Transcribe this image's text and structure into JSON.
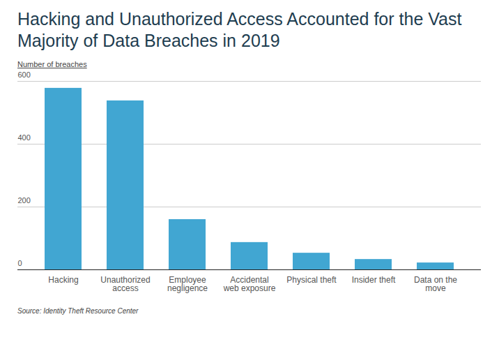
{
  "chart_data": {
    "type": "bar",
    "title": "Hacking and Unauthorized Access Accounted for the Vast Majority of Data Breaches in 2019",
    "y_label": "Number of breaches",
    "source": "Source: Identity Theft Resource Center",
    "categories": [
      "Hacking",
      "Unauthorized access",
      "Employee negligence",
      "Accidental web exposure",
      "Physical theft",
      "Insider theft",
      "Data on the move"
    ],
    "values": [
      578,
      538,
      160,
      87,
      53,
      33,
      22
    ],
    "color": "#41a6d2",
    "ylim": [
      0,
      600
    ],
    "yticks": [
      0,
      200,
      400,
      600
    ],
    "grid": true
  }
}
